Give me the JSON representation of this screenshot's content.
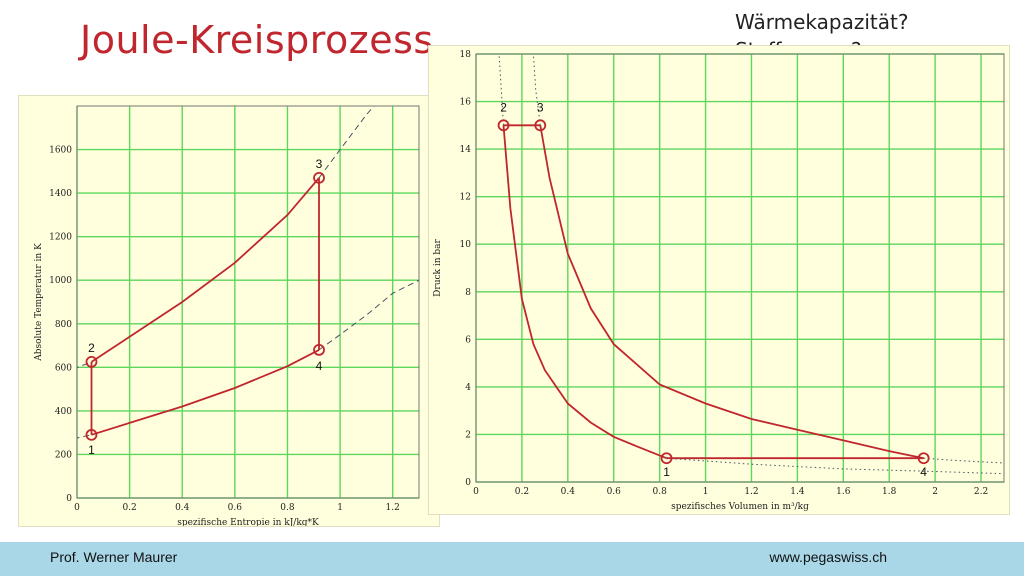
{
  "slide": {
    "title": "Joule-Kreisprozess",
    "note_line1": "Wärmekapazität?",
    "note_line2": "Stoffmenge?"
  },
  "footer": {
    "author": "Prof. Werner Maurer",
    "website": "www.pegaswiss.ch"
  },
  "colors": {
    "accent": "#c0262d",
    "grid": "#5cd65c",
    "panel": "#ffffdd",
    "footer": "#a9d7e8",
    "dashed": "#445566"
  },
  "chart_data": [
    {
      "type": "line",
      "title": "",
      "xlabel": "spezifische Entropie in kJ/kg*K",
      "ylabel": "Absolute Temperatur in K",
      "xlim": [
        0,
        1.3
      ],
      "ylim": [
        0,
        1800
      ],
      "x_ticks": [
        0,
        0.2,
        0.4,
        0.6,
        0.8,
        1,
        1.2
      ],
      "x_tick_labels": [
        "0",
        "0.2",
        "0.4",
        "0.6",
        "0.8",
        "1",
        "1.2"
      ],
      "y_ticks": [
        0,
        200,
        400,
        600,
        800,
        1000,
        1200,
        1400,
        1600
      ],
      "y_tick_labels": [
        "0",
        "200",
        "400",
        "600",
        "800",
        "1000",
        "1200",
        "1400",
        "1600"
      ],
      "grid": true,
      "points": [
        {
          "label": "1",
          "x": 0.055,
          "y": 290
        },
        {
          "label": "2",
          "x": 0.055,
          "y": 625
        },
        {
          "label": "3",
          "x": 0.92,
          "y": 1470
        },
        {
          "label": "4",
          "x": 0.92,
          "y": 680
        }
      ],
      "series": [
        {
          "style": "solid",
          "points": [
            [
              0.055,
              290
            ],
            [
              0.055,
              625
            ]
          ]
        },
        {
          "style": "solid",
          "points": [
            [
              0.055,
              625
            ],
            [
              0.2,
              740
            ],
            [
              0.4,
              900
            ],
            [
              0.6,
              1080
            ],
            [
              0.8,
              1300
            ],
            [
              0.92,
              1470
            ]
          ]
        },
        {
          "style": "solid",
          "points": [
            [
              0.92,
              1470
            ],
            [
              0.92,
              680
            ]
          ]
        },
        {
          "style": "solid",
          "points": [
            [
              0.055,
              290
            ],
            [
              0.2,
              345
            ],
            [
              0.4,
              420
            ],
            [
              0.6,
              505
            ],
            [
              0.8,
              605
            ],
            [
              0.92,
              680
            ]
          ]
        },
        {
          "style": "dashed",
          "points": [
            [
              -0.05,
              575
            ],
            [
              0.055,
              625
            ]
          ]
        },
        {
          "style": "dashed",
          "points": [
            [
              0.92,
              1470
            ],
            [
              1.0,
              1600
            ],
            [
              1.1,
              1760
            ],
            [
              1.2,
              1900
            ]
          ]
        },
        {
          "style": "dashed",
          "points": [
            [
              -0.05,
              262
            ],
            [
              0.055,
              290
            ]
          ]
        },
        {
          "style": "dashed",
          "points": [
            [
              0.92,
              680
            ],
            [
              1.0,
              750
            ],
            [
              1.1,
              840
            ],
            [
              1.2,
              940
            ],
            [
              1.3,
              1000
            ]
          ]
        }
      ]
    },
    {
      "type": "line",
      "title": "",
      "xlabel": "spezifisches Volumen in m³/kg",
      "ylabel": "Druck in bar",
      "xlim": [
        0,
        2.3
      ],
      "ylim": [
        0,
        18
      ],
      "x_ticks": [
        0,
        0.2,
        0.4,
        0.6,
        0.8,
        1,
        1.2,
        1.4,
        1.6,
        1.8,
        2,
        2.2
      ],
      "x_tick_labels": [
        "0",
        "0.2",
        "0.4",
        "0.6",
        "0.8",
        "1",
        "1.2",
        "1.4",
        "1.6",
        "1.8",
        "2",
        "2.2"
      ],
      "y_ticks": [
        0,
        2,
        4,
        6,
        8,
        10,
        12,
        14,
        16,
        18
      ],
      "y_tick_labels": [
        "0",
        "2",
        "4",
        "6",
        "8",
        "10",
        "12",
        "14",
        "16",
        "18"
      ],
      "grid": true,
      "points": [
        {
          "label": "1",
          "x": 0.83,
          "y": 1
        },
        {
          "label": "2",
          "x": 0.12,
          "y": 15
        },
        {
          "label": "3",
          "x": 0.28,
          "y": 15
        },
        {
          "label": "4",
          "x": 1.95,
          "y": 1
        }
      ],
      "series": [
        {
          "style": "solid",
          "points": [
            [
              0.12,
              15
            ],
            [
              0.28,
              15
            ]
          ]
        },
        {
          "style": "solid",
          "points": [
            [
              0.83,
              1
            ],
            [
              1.95,
              1
            ]
          ]
        },
        {
          "style": "solid",
          "points": [
            [
              0.12,
              15
            ],
            [
              0.15,
              11.5
            ],
            [
              0.2,
              7.7
            ],
            [
              0.25,
              5.8
            ],
            [
              0.3,
              4.7
            ],
            [
              0.4,
              3.3
            ],
            [
              0.5,
              2.5
            ],
            [
              0.6,
              1.9
            ],
            [
              0.7,
              1.5
            ],
            [
              0.83,
              1.0
            ]
          ]
        },
        {
          "style": "solid",
          "points": [
            [
              0.28,
              15
            ],
            [
              0.32,
              12.8
            ],
            [
              0.4,
              9.6
            ],
            [
              0.5,
              7.3
            ],
            [
              0.6,
              5.8
            ],
            [
              0.8,
              4.1
            ],
            [
              1.0,
              3.3
            ],
            [
              1.2,
              2.65
            ],
            [
              1.4,
              2.2
            ],
            [
              1.6,
              1.75
            ],
            [
              1.8,
              1.3
            ],
            [
              1.95,
              1.0
            ]
          ]
        },
        {
          "style": "dotted",
          "points": [
            [
              0.12,
              15
            ],
            [
              0.11,
              16.5
            ],
            [
              0.1,
              18
            ]
          ]
        },
        {
          "style": "dotted",
          "points": [
            [
              0.28,
              15
            ],
            [
              0.26,
              16.5
            ],
            [
              0.25,
              18
            ]
          ]
        },
        {
          "style": "dotted",
          "points": [
            [
              0.83,
              1.0
            ],
            [
              1.2,
              0.75
            ],
            [
              1.6,
              0.55
            ],
            [
              2.0,
              0.44
            ],
            [
              2.3,
              0.35
            ]
          ]
        },
        {
          "style": "dotted",
          "points": [
            [
              1.95,
              1.0
            ],
            [
              2.1,
              0.9
            ],
            [
              2.3,
              0.8
            ]
          ]
        }
      ]
    }
  ]
}
